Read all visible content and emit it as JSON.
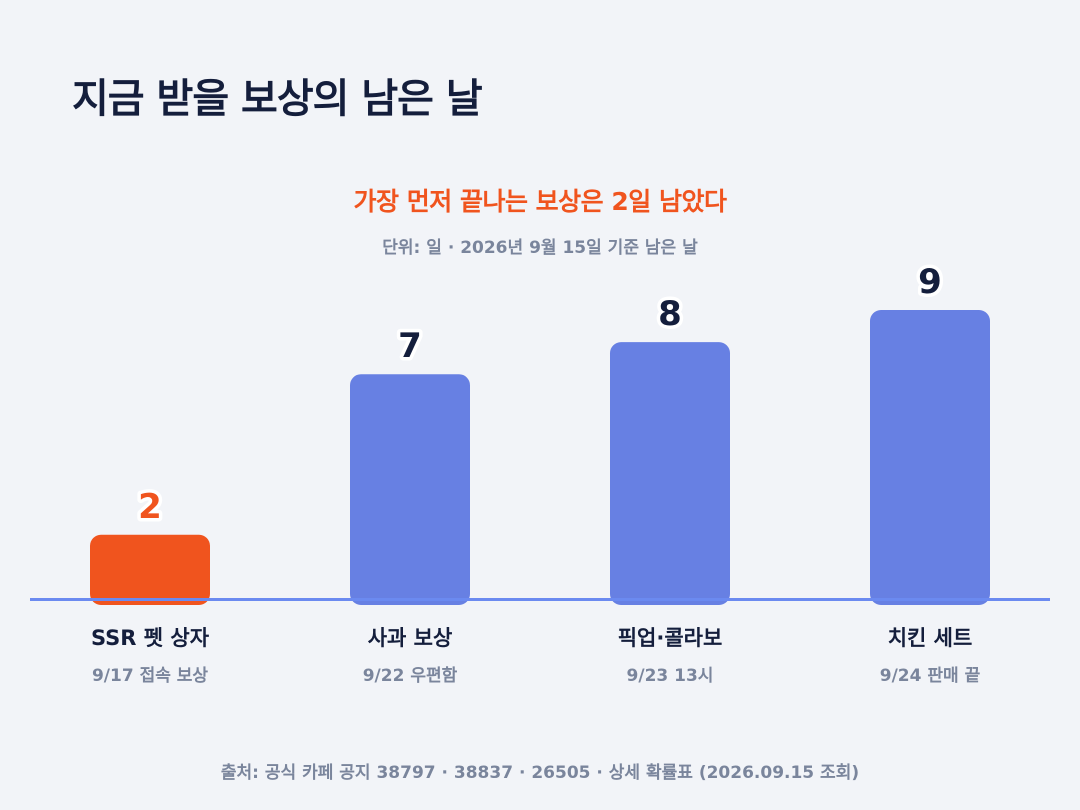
{
  "title": "지금 받을 보상의 남은 날",
  "headline": "가장 먼저 끝나는 보상은 2일 남았다",
  "subtitle": "단위: 일 · 2026년 9월 15일 기준 남은 날",
  "source": "출처: 공식 카페 공지 38797 · 38837 · 26505 · 상세 확률표 (2026.09.15 조회)",
  "colors": {
    "highlight": "#F0541E",
    "bar": "#6780E3",
    "baseline": "#6B8AF0",
    "value_text": "#141E3C",
    "category_text": "#141E3C",
    "sub_text": "#7A859C"
  },
  "chart_data": {
    "type": "bar",
    "unit": "일",
    "categories": [
      "SSR 펫 상자",
      "사과 보상",
      "픽업·콜라보",
      "치킨 세트"
    ],
    "sublabels": [
      "9/17 접속 보상",
      "9/22 우편함",
      "9/23 13시",
      "9/24 판매 끝"
    ],
    "values": [
      2,
      7,
      8,
      9
    ],
    "highlight_index": 0,
    "ylim": [
      0,
      9
    ],
    "grid": false,
    "legend": "none"
  }
}
